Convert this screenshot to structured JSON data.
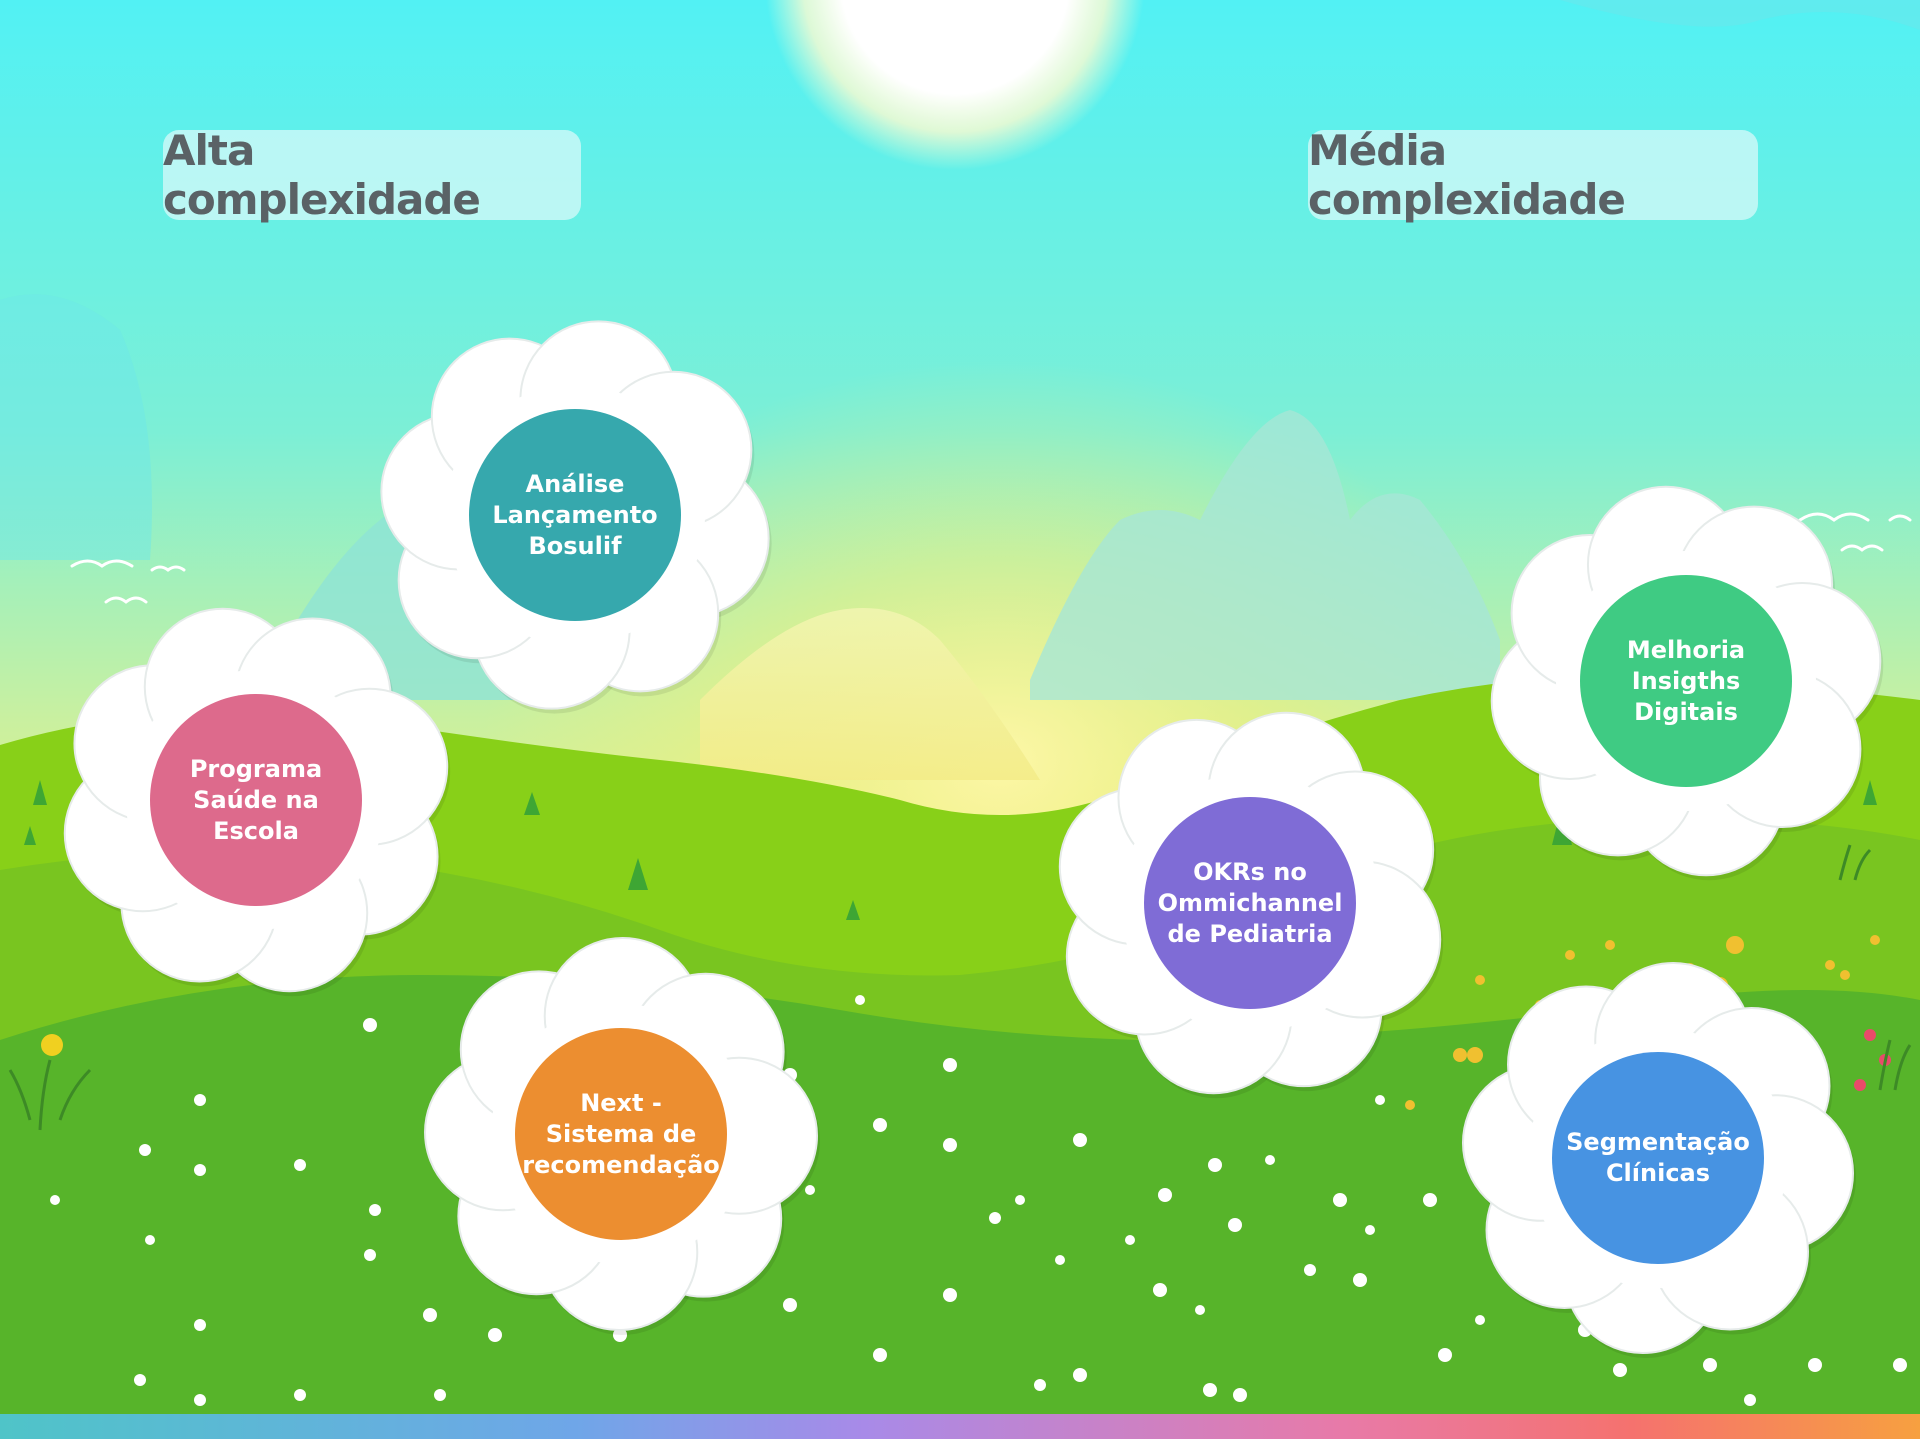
{
  "categories": {
    "high": "Alta complexidade",
    "medium": "Média complexidade"
  },
  "projects": [
    {
      "label": "Análise\nLançamento\nBosulif",
      "color": "#36a8ad",
      "category": "high"
    },
    {
      "label": "Programa\nSaúde na\nEscola",
      "color": "#dd6a8c",
      "category": "high"
    },
    {
      "label": "Next -\nSistema de\nrecomendação",
      "color": "#ec8e30",
      "category": "high"
    },
    {
      "label": "OKRs no\nOmmichannel\nde Pediatria",
      "color": "#7f6cd6",
      "category": "medium"
    },
    {
      "label": "Melhoria\nInsigths\nDigitais",
      "color": "#3fcb83",
      "category": "medium"
    },
    {
      "label": "Segmentação\nClínicas",
      "color": "#4793e2",
      "category": "medium"
    }
  ]
}
